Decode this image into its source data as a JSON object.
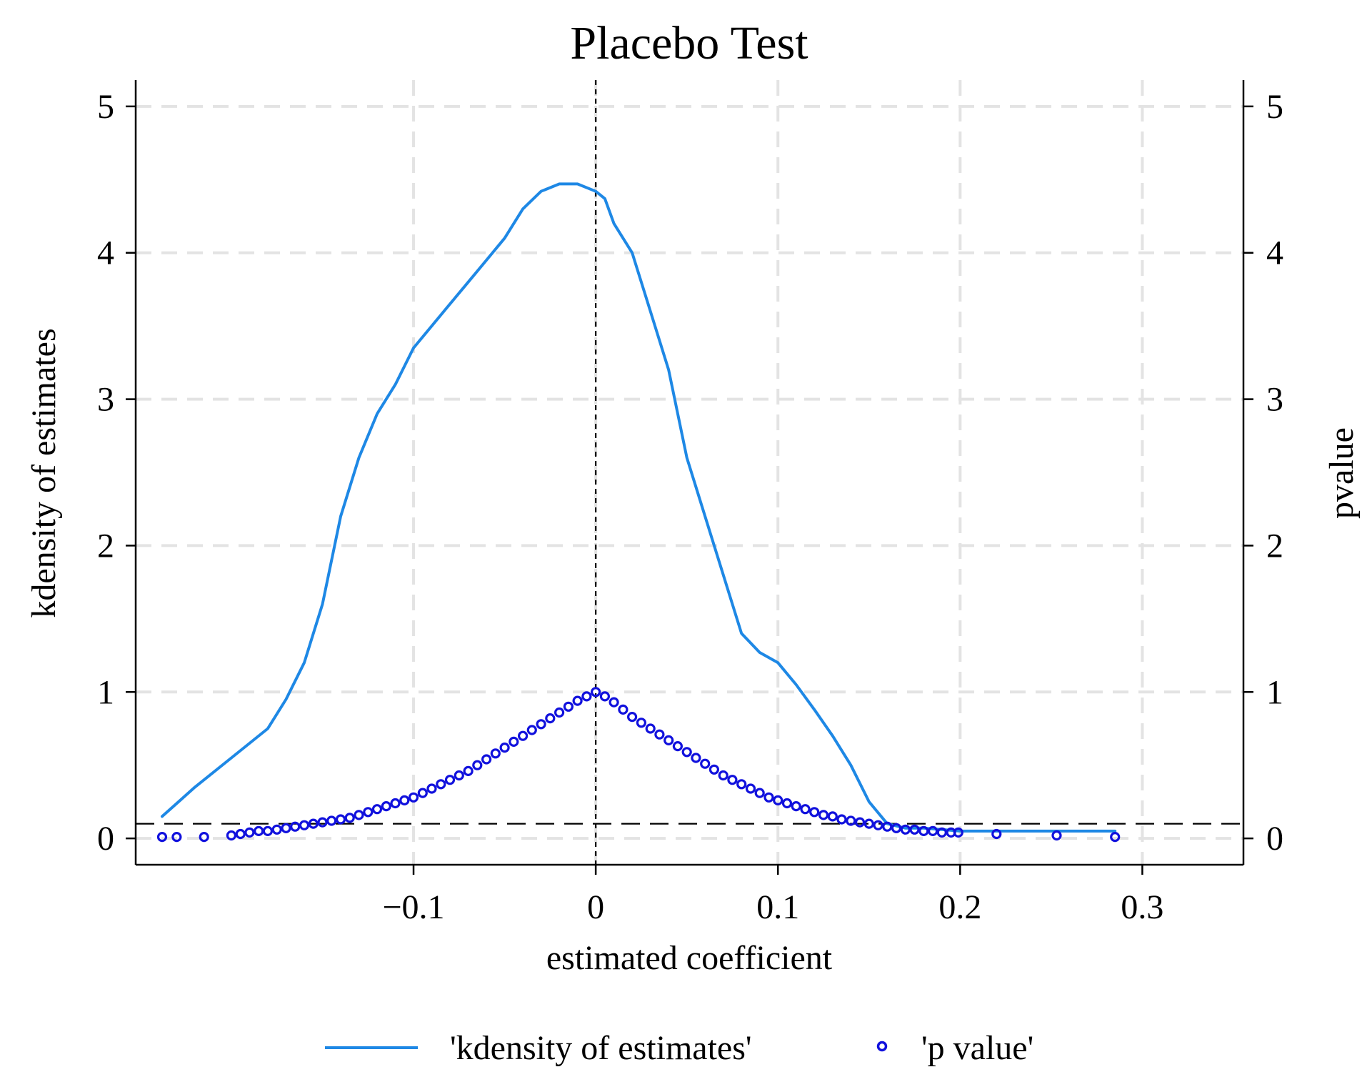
{
  "chart_data": {
    "type": "line",
    "title": "Placebo Test",
    "xlabel": "estimated coefficient",
    "ylabel_left": "kdensity of estimates",
    "ylabel_right": "pvalue",
    "xlim": [
      -0.2525,
      0.3555
    ],
    "ylim": [
      -0.18,
      5.18
    ],
    "x_ticks": [
      -0.1,
      0,
      0.1,
      0.2,
      0.3
    ],
    "x_tick_labels": [
      "−0.1",
      "0",
      "0.1",
      "0.2",
      "0.3"
    ],
    "y_ticks": [
      0,
      1,
      2,
      3,
      4,
      5
    ],
    "y_tick_labels": [
      "0",
      "1",
      "2",
      "3",
      "4",
      "5"
    ],
    "y2_ticks": [
      0,
      1,
      2,
      3,
      4,
      5
    ],
    "y2_tick_labels": [
      "0",
      "1",
      "2",
      "3",
      "4",
      "5"
    ],
    "grid": true,
    "reference_lines": {
      "vertical_x": 0,
      "horizontal_y": 0.1
    },
    "legend": {
      "position": "bottom",
      "entries": [
        "'kdensity of estimates'",
        "'p value'"
      ]
    },
    "colors": {
      "kdensity": "#1e88e5",
      "pvalue": "#1111dd"
    },
    "series": [
      {
        "name": "'kdensity of estimates'",
        "type": "line",
        "color": "#1e88e5",
        "x": [
          -0.238,
          -0.22,
          -0.2,
          -0.18,
          -0.17,
          -0.16,
          -0.15,
          -0.14,
          -0.13,
          -0.12,
          -0.11,
          -0.1,
          -0.09,
          -0.08,
          -0.07,
          -0.06,
          -0.05,
          -0.04,
          -0.03,
          -0.02,
          -0.01,
          0,
          0.005,
          0.01,
          0.02,
          0.03,
          0.04,
          0.05,
          0.06,
          0.07,
          0.08,
          0.09,
          0.1,
          0.11,
          0.12,
          0.13,
          0.14,
          0.15,
          0.16,
          0.17,
          0.18,
          0.19,
          0.2,
          0.21,
          0.22,
          0.23,
          0.24,
          0.25,
          0.26,
          0.27,
          0.28,
          0.285
        ],
        "values": [
          0.15,
          0.35,
          0.55,
          0.75,
          0.95,
          1.2,
          1.6,
          2.2,
          2.6,
          2.9,
          3.1,
          3.35,
          3.5,
          3.65,
          3.8,
          3.95,
          4.1,
          4.3,
          4.42,
          4.47,
          4.47,
          4.42,
          4.37,
          4.2,
          4.0,
          3.6,
          3.2,
          2.6,
          2.2,
          1.8,
          1.4,
          1.27,
          1.2,
          1.05,
          0.88,
          0.7,
          0.5,
          0.25,
          0.1,
          0.07,
          0.07,
          0.06,
          0.05,
          0.05,
          0.05,
          0.05,
          0.05,
          0.05,
          0.05,
          0.05,
          0.05,
          0.05
        ]
      },
      {
        "name": "'p value'",
        "type": "scatter",
        "marker": "hollow-circle",
        "color": "#1111dd",
        "x": [
          -0.238,
          -0.23,
          -0.215,
          -0.2,
          -0.195,
          -0.19,
          -0.185,
          -0.18,
          -0.175,
          -0.17,
          -0.165,
          -0.16,
          -0.155,
          -0.15,
          -0.145,
          -0.14,
          -0.135,
          -0.13,
          -0.125,
          -0.12,
          -0.115,
          -0.11,
          -0.105,
          -0.1,
          -0.095,
          -0.09,
          -0.085,
          -0.08,
          -0.075,
          -0.07,
          -0.065,
          -0.06,
          -0.055,
          -0.05,
          -0.045,
          -0.04,
          -0.035,
          -0.03,
          -0.025,
          -0.02,
          -0.015,
          -0.01,
          -0.005,
          0,
          0.005,
          0.01,
          0.015,
          0.02,
          0.025,
          0.03,
          0.035,
          0.04,
          0.045,
          0.05,
          0.055,
          0.06,
          0.065,
          0.07,
          0.075,
          0.08,
          0.085,
          0.09,
          0.095,
          0.1,
          0.105,
          0.11,
          0.115,
          0.12,
          0.125,
          0.13,
          0.135,
          0.14,
          0.145,
          0.15,
          0.155,
          0.16,
          0.165,
          0.17,
          0.175,
          0.18,
          0.185,
          0.19,
          0.195,
          0.199,
          0.22,
          0.253,
          0.285
        ],
        "values": [
          0.01,
          0.01,
          0.01,
          0.02,
          0.03,
          0.04,
          0.05,
          0.05,
          0.06,
          0.07,
          0.08,
          0.09,
          0.1,
          0.11,
          0.12,
          0.13,
          0.14,
          0.16,
          0.18,
          0.2,
          0.22,
          0.24,
          0.26,
          0.28,
          0.31,
          0.34,
          0.37,
          0.4,
          0.43,
          0.46,
          0.5,
          0.54,
          0.58,
          0.62,
          0.66,
          0.7,
          0.74,
          0.78,
          0.82,
          0.86,
          0.9,
          0.94,
          0.97,
          1.0,
          0.97,
          0.93,
          0.88,
          0.83,
          0.79,
          0.75,
          0.71,
          0.67,
          0.63,
          0.59,
          0.55,
          0.51,
          0.47,
          0.43,
          0.4,
          0.37,
          0.34,
          0.31,
          0.28,
          0.26,
          0.24,
          0.22,
          0.2,
          0.18,
          0.16,
          0.15,
          0.13,
          0.12,
          0.11,
          0.1,
          0.09,
          0.08,
          0.07,
          0.06,
          0.06,
          0.05,
          0.05,
          0.04,
          0.04,
          0.04,
          0.03,
          0.02,
          0.01
        ]
      }
    ]
  }
}
